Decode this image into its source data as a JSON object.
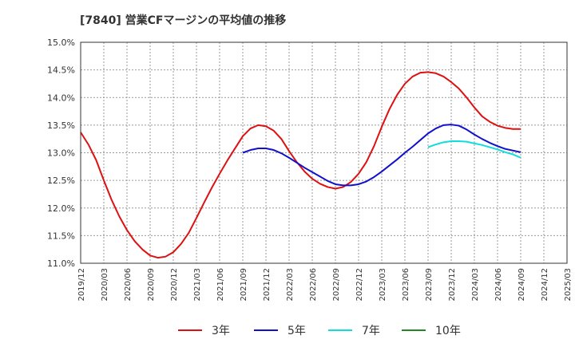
{
  "chart_data": {
    "type": "line",
    "title": "[7840]  営業CFマージンの平均値の推移",
    "xlabel": "",
    "ylabel": "",
    "ylim": [
      11.0,
      15.0
    ],
    "y_ticks": [
      "11.0%",
      "11.5%",
      "12.0%",
      "12.5%",
      "13.0%",
      "13.5%",
      "14.0%",
      "14.5%",
      "15.0%"
    ],
    "x_ticks": [
      "2019/12",
      "2020/03",
      "2020/06",
      "2020/09",
      "2020/12",
      "2021/03",
      "2021/06",
      "2021/09",
      "2021/12",
      "2022/03",
      "2022/06",
      "2022/09",
      "2022/12",
      "2023/03",
      "2023/06",
      "2023/09",
      "2023/12",
      "2024/03",
      "2024/06",
      "2024/09",
      "2024/12",
      "2025/03"
    ],
    "grid": true,
    "legend_position": "bottom",
    "x_month_start": "2019/12",
    "series": [
      {
        "name": "3年",
        "color": "#dd1111",
        "x": [
          "2019/12",
          "2020/01",
          "2020/02",
          "2020/03",
          "2020/04",
          "2020/05",
          "2020/06",
          "2020/07",
          "2020/08",
          "2020/09",
          "2020/10",
          "2020/11",
          "2020/12",
          "2021/01",
          "2021/02",
          "2021/03",
          "2021/04",
          "2021/05",
          "2021/06",
          "2021/07",
          "2021/08",
          "2021/09",
          "2021/10",
          "2021/11",
          "2021/12",
          "2022/01",
          "2022/02",
          "2022/03",
          "2022/04",
          "2022/05",
          "2022/06",
          "2022/07",
          "2022/08",
          "2022/09",
          "2022/10",
          "2022/11",
          "2022/12",
          "2023/01",
          "2023/02",
          "2023/03",
          "2023/04",
          "2023/05",
          "2023/06",
          "2023/07",
          "2023/08",
          "2023/09",
          "2023/10",
          "2023/11",
          "2023/12",
          "2024/01",
          "2024/02",
          "2024/03",
          "2024/04",
          "2024/05",
          "2024/06",
          "2024/07",
          "2024/08",
          "2024/09"
        ],
        "values": [
          13.37,
          13.15,
          12.87,
          12.5,
          12.15,
          11.85,
          11.6,
          11.4,
          11.25,
          11.14,
          11.1,
          11.12,
          11.2,
          11.35,
          11.55,
          11.82,
          12.1,
          12.37,
          12.62,
          12.86,
          13.08,
          13.3,
          13.44,
          13.5,
          13.48,
          13.4,
          13.25,
          13.03,
          12.83,
          12.66,
          12.53,
          12.44,
          12.38,
          12.35,
          12.38,
          12.47,
          12.62,
          12.83,
          13.12,
          13.47,
          13.79,
          14.05,
          14.25,
          14.38,
          14.45,
          14.46,
          14.44,
          14.38,
          14.28,
          14.16,
          14.0,
          13.82,
          13.66,
          13.56,
          13.49,
          13.45,
          13.43,
          13.43
        ]
      },
      {
        "name": "5年",
        "color": "#1111cc",
        "x": [
          "2021/09",
          "2021/10",
          "2021/11",
          "2021/12",
          "2022/01",
          "2022/02",
          "2022/03",
          "2022/04",
          "2022/05",
          "2022/06",
          "2022/07",
          "2022/08",
          "2022/09",
          "2022/10",
          "2022/11",
          "2022/12",
          "2023/01",
          "2023/02",
          "2023/03",
          "2023/04",
          "2023/05",
          "2023/06",
          "2023/07",
          "2023/08",
          "2023/09",
          "2023/10",
          "2023/11",
          "2023/12",
          "2024/01",
          "2024/02",
          "2024/03",
          "2024/04",
          "2024/05",
          "2024/06",
          "2024/07",
          "2024/08",
          "2024/09"
        ],
        "values": [
          13.0,
          13.05,
          13.08,
          13.08,
          13.05,
          12.99,
          12.91,
          12.82,
          12.73,
          12.65,
          12.57,
          12.49,
          12.43,
          12.41,
          12.41,
          12.43,
          12.48,
          12.56,
          12.66,
          12.77,
          12.88,
          13.0,
          13.11,
          13.23,
          13.35,
          13.44,
          13.5,
          13.51,
          13.49,
          13.42,
          13.33,
          13.25,
          13.18,
          13.12,
          13.07,
          13.04,
          13.01
        ]
      },
      {
        "name": "7年",
        "color": "#11dddd",
        "x": [
          "2023/09",
          "2023/10",
          "2023/11",
          "2023/12",
          "2024/01",
          "2024/02",
          "2024/03",
          "2024/04",
          "2024/05",
          "2024/06",
          "2024/07",
          "2024/08",
          "2024/09"
        ],
        "values": [
          13.1,
          13.15,
          13.19,
          13.21,
          13.21,
          13.2,
          13.17,
          13.14,
          13.1,
          13.06,
          13.01,
          12.97,
          12.91
        ]
      },
      {
        "name": "10年",
        "color": "#228822",
        "x": [],
        "values": []
      }
    ]
  }
}
